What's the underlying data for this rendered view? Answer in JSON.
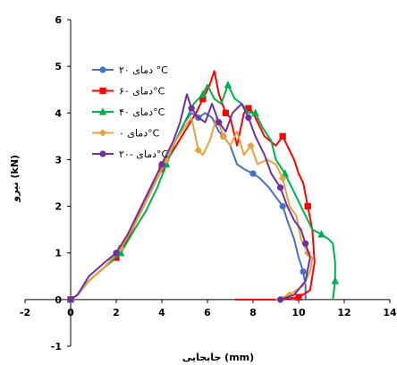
{
  "chart_data": {
    "type": "line",
    "title": "",
    "xlabel": "جابجایی (mm)",
    "ylabel": "نیرو (kN)",
    "xlim": [
      -2,
      14
    ],
    "ylim": [
      -1,
      6
    ],
    "xticks": [
      "-2",
      "0",
      "2",
      "4",
      "6",
      "8",
      "10",
      "12",
      "14"
    ],
    "yticks": [
      "-1",
      "0",
      "1",
      "2",
      "3",
      "4",
      "5",
      "6"
    ],
    "grid": false,
    "legend_position": "upper-left",
    "series": [
      {
        "name": "دمای ۲۰ °C",
        "color": "#4472C4",
        "marker": "circle",
        "points": [
          [
            0,
            0
          ],
          [
            0.3,
            0.1
          ],
          [
            0.8,
            0.4
          ],
          [
            1.5,
            0.7
          ],
          [
            2.2,
            1.1
          ],
          [
            2.8,
            1.6
          ],
          [
            3.2,
            2.1
          ],
          [
            3.8,
            2.6
          ],
          [
            4.2,
            3.0
          ],
          [
            4.6,
            3.4
          ],
          [
            5.0,
            3.8
          ],
          [
            5.3,
            4.0
          ],
          [
            5.6,
            3.9
          ],
          [
            5.9,
            4.0
          ],
          [
            6.2,
            3.9
          ],
          [
            6.5,
            3.6
          ],
          [
            6.7,
            3.5
          ],
          [
            7.0,
            3.3
          ],
          [
            7.3,
            2.9
          ],
          [
            7.6,
            2.8
          ],
          [
            8.0,
            2.7
          ],
          [
            8.3,
            2.6
          ],
          [
            8.7,
            2.4
          ],
          [
            9.0,
            2.2
          ],
          [
            9.3,
            2.0
          ],
          [
            9.5,
            1.7
          ],
          [
            9.8,
            1.3
          ],
          [
            10.0,
            0.9
          ],
          [
            10.2,
            0.6
          ],
          [
            10.3,
            0.3
          ],
          [
            10.3,
            0.0
          ]
        ]
      },
      {
        "name": "دمای ۶۰°C",
        "color": "#FF0000",
        "marker": "square",
        "points": [
          [
            0,
            0
          ],
          [
            0.3,
            0.1
          ],
          [
            0.8,
            0.4
          ],
          [
            1.5,
            0.7
          ],
          [
            2.0,
            0.9
          ],
          [
            2.5,
            1.3
          ],
          [
            3.0,
            1.8
          ],
          [
            3.5,
            2.3
          ],
          [
            4.0,
            2.8
          ],
          [
            4.5,
            3.2
          ],
          [
            5.0,
            3.6
          ],
          [
            5.5,
            4.0
          ],
          [
            5.8,
            4.3
          ],
          [
            6.1,
            4.6
          ],
          [
            6.3,
            4.9
          ],
          [
            6.5,
            4.4
          ],
          [
            6.8,
            4.0
          ],
          [
            7.0,
            3.9
          ],
          [
            7.3,
            3.3
          ],
          [
            7.6,
            4.0
          ],
          [
            7.8,
            4.1
          ],
          [
            8.0,
            4.0
          ],
          [
            8.5,
            3.5
          ],
          [
            9.0,
            3.3
          ],
          [
            9.3,
            3.5
          ],
          [
            9.8,
            3.0
          ],
          [
            10.0,
            2.7
          ],
          [
            10.2,
            2.5
          ],
          [
            10.4,
            2.0
          ],
          [
            10.6,
            1.5
          ],
          [
            10.7,
            0.8
          ],
          [
            10.5,
            0.2
          ],
          [
            10.0,
            0.05
          ],
          [
            9.0,
            0.0
          ],
          [
            8.0,
            0.0
          ],
          [
            7.2,
            0.0
          ]
        ]
      },
      {
        "name": "دمای ۴۰°C",
        "color": "#00B050",
        "marker": "triangle",
        "points": [
          [
            0,
            0
          ],
          [
            0.3,
            0.1
          ],
          [
            0.8,
            0.4
          ],
          [
            1.5,
            0.7
          ],
          [
            2.2,
            1.0
          ],
          [
            2.8,
            1.5
          ],
          [
            3.3,
            1.9
          ],
          [
            3.8,
            2.4
          ],
          [
            4.2,
            2.9
          ],
          [
            4.6,
            3.4
          ],
          [
            5.0,
            3.8
          ],
          [
            5.4,
            4.2
          ],
          [
            5.8,
            4.4
          ],
          [
            6.0,
            4.6
          ],
          [
            6.3,
            4.3
          ],
          [
            6.6,
            4.2
          ],
          [
            6.9,
            4.6
          ],
          [
            7.2,
            4.3
          ],
          [
            7.5,
            4.2
          ],
          [
            7.8,
            4.0
          ],
          [
            8.1,
            4.0
          ],
          [
            8.4,
            3.7
          ],
          [
            8.8,
            3.4
          ],
          [
            9.0,
            3.0
          ],
          [
            9.4,
            2.7
          ],
          [
            9.8,
            2.3
          ],
          [
            10.2,
            1.9
          ],
          [
            10.6,
            1.5
          ],
          [
            11.0,
            1.4
          ],
          [
            11.3,
            1.3
          ],
          [
            11.5,
            1.2
          ],
          [
            11.6,
            0.8
          ],
          [
            11.6,
            0.4
          ],
          [
            11.5,
            0.0
          ]
        ]
      },
      {
        "name": "دمای ۰°C",
        "color": "#E9A23B",
        "marker": "diamond",
        "points": [
          [
            0,
            0
          ],
          [
            0.3,
            0.1
          ],
          [
            0.8,
            0.4
          ],
          [
            1.5,
            0.7
          ],
          [
            2.2,
            1.1
          ],
          [
            2.8,
            1.6
          ],
          [
            3.3,
            2.1
          ],
          [
            3.8,
            2.6
          ],
          [
            4.2,
            3.0
          ],
          [
            4.6,
            3.4
          ],
          [
            5.0,
            3.7
          ],
          [
            5.3,
            3.9
          ],
          [
            5.6,
            3.2
          ],
          [
            5.8,
            3.1
          ],
          [
            6.1,
            3.4
          ],
          [
            6.4,
            3.9
          ],
          [
            6.7,
            3.5
          ],
          [
            7.0,
            3.3
          ],
          [
            7.3,
            3.6
          ],
          [
            7.6,
            3.1
          ],
          [
            7.9,
            3.3
          ],
          [
            8.2,
            2.9
          ],
          [
            8.6,
            3.0
          ],
          [
            9.0,
            2.9
          ],
          [
            9.3,
            2.6
          ],
          [
            9.6,
            2.0
          ],
          [
            9.9,
            1.8
          ],
          [
            10.1,
            1.3
          ],
          [
            10.4,
            1.0
          ],
          [
            10.6,
            0.9
          ],
          [
            10.5,
            0.6
          ],
          [
            10.2,
            0.3
          ],
          [
            9.6,
            0.1
          ],
          [
            9.0,
            0.0
          ]
        ]
      },
      {
        "name": "دمای -۲۰°C",
        "color": "#7030A0",
        "marker": "circle",
        "points": [
          [
            0,
            0
          ],
          [
            0.3,
            0.1
          ],
          [
            0.8,
            0.5
          ],
          [
            1.5,
            0.8
          ],
          [
            2.0,
            1.0
          ],
          [
            2.5,
            1.4
          ],
          [
            3.0,
            1.9
          ],
          [
            3.5,
            2.4
          ],
          [
            4.0,
            2.9
          ],
          [
            4.5,
            3.4
          ],
          [
            4.8,
            3.8
          ],
          [
            5.1,
            4.4
          ],
          [
            5.3,
            4.1
          ],
          [
            5.6,
            3.9
          ],
          [
            5.9,
            3.8
          ],
          [
            6.2,
            4.2
          ],
          [
            6.5,
            3.8
          ],
          [
            6.8,
            3.6
          ],
          [
            7.1,
            4.0
          ],
          [
            7.5,
            4.2
          ],
          [
            7.8,
            3.9
          ],
          [
            8.1,
            3.5
          ],
          [
            8.5,
            3.1
          ],
          [
            8.8,
            2.7
          ],
          [
            9.2,
            2.4
          ],
          [
            9.5,
            2.0
          ],
          [
            9.8,
            1.7
          ],
          [
            10.1,
            1.5
          ],
          [
            10.3,
            1.2
          ],
          [
            10.5,
            0.9
          ],
          [
            10.3,
            0.4
          ],
          [
            9.8,
            0.1
          ],
          [
            9.2,
            0.0
          ]
        ]
      }
    ]
  }
}
